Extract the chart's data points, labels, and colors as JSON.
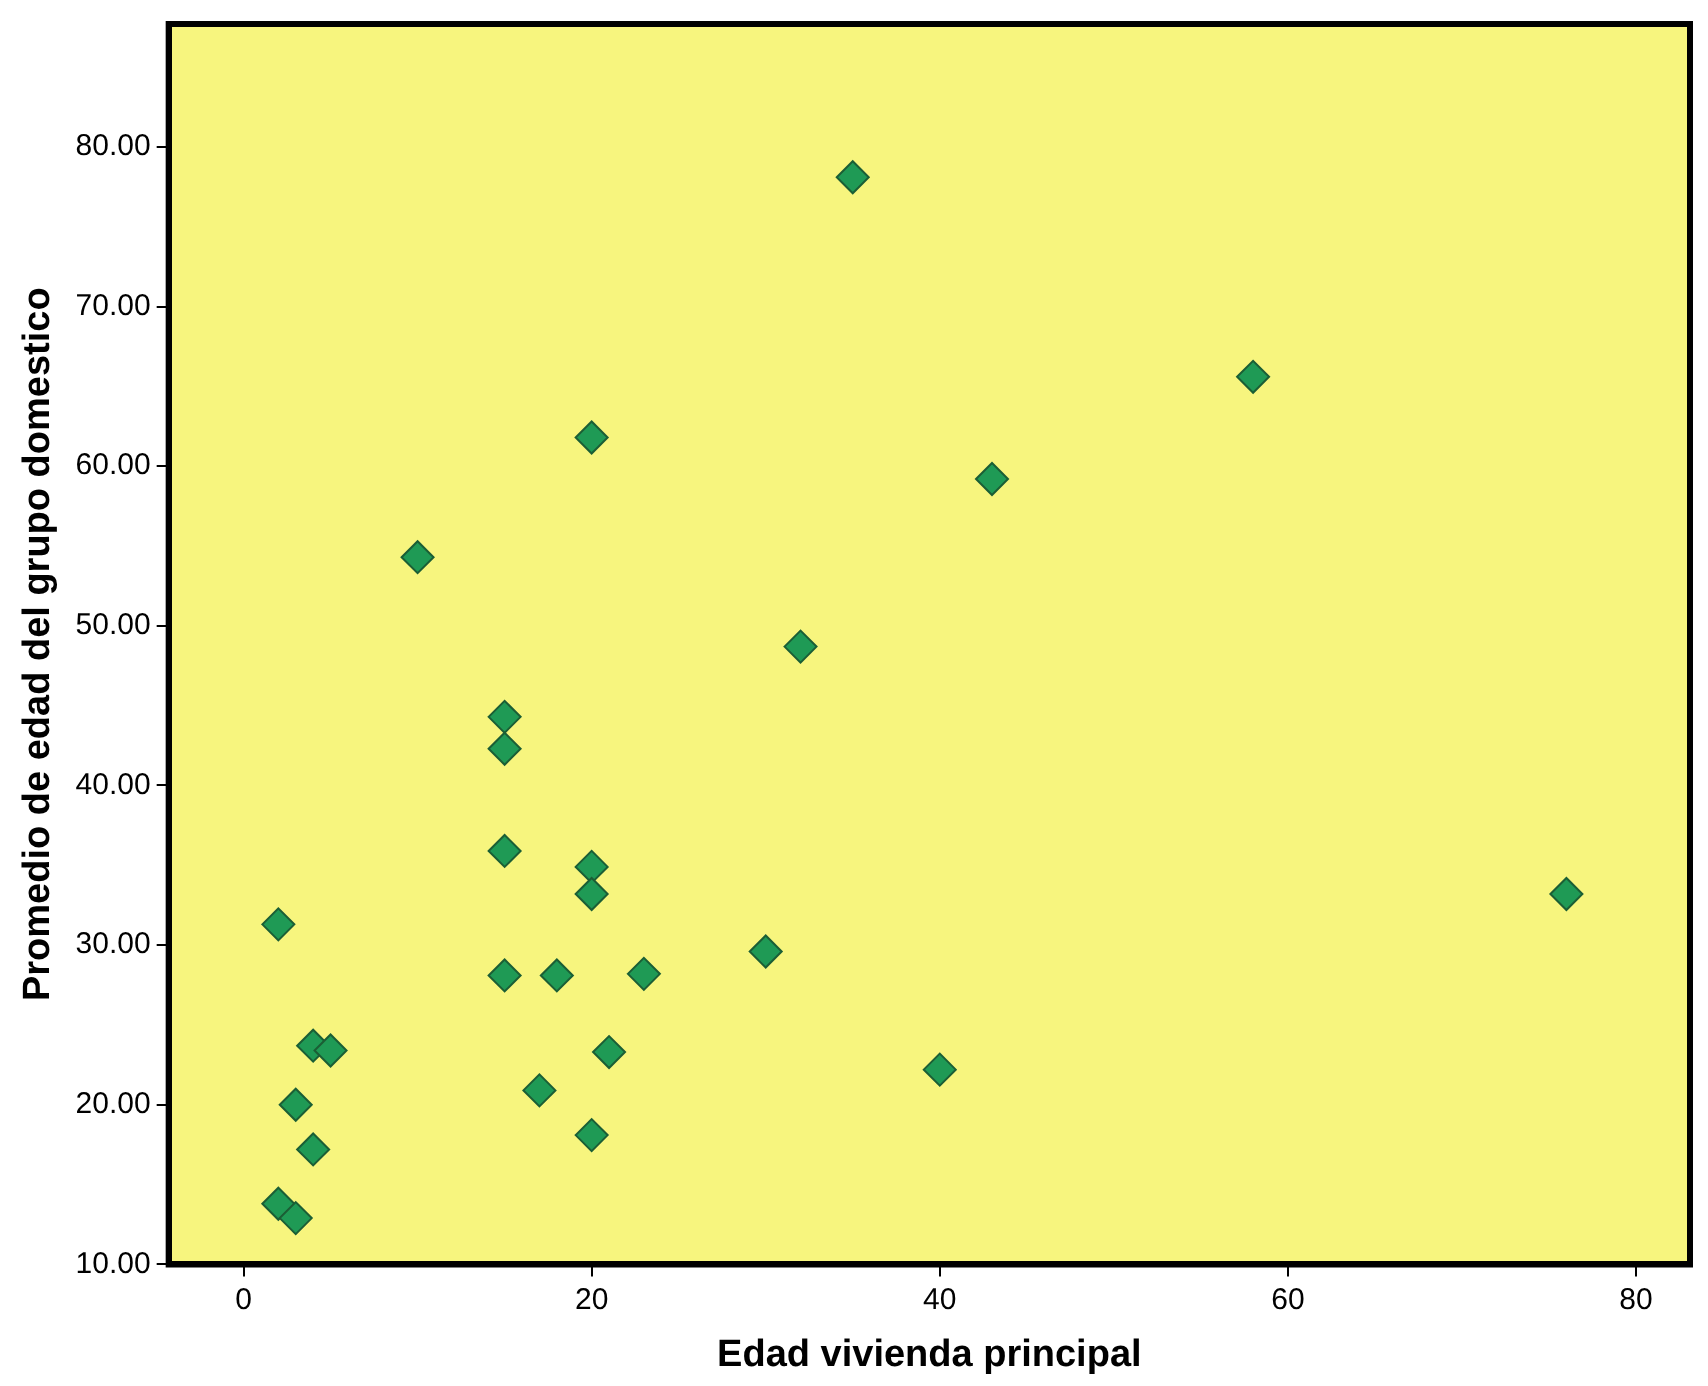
{
  "chart_data": {
    "type": "scatter",
    "xlabel": "Edad vivienda principal",
    "ylabel": "Promedio de edad del grupo domestico",
    "marker": "diamond",
    "grid": false,
    "legend": false,
    "xlim": [
      -4.3,
      83.1
    ],
    "ylim": [
      10,
      87.7
    ],
    "xticks": [
      0,
      20,
      40,
      60,
      80
    ],
    "yticks": [
      {
        "value": 10,
        "label": "10.00"
      },
      {
        "value": 20,
        "label": "20.00"
      },
      {
        "value": 30,
        "label": "30.00"
      },
      {
        "value": 40,
        "label": "40.00"
      },
      {
        "value": 50,
        "label": "50.00"
      },
      {
        "value": 60,
        "label": "60.00"
      },
      {
        "value": 70,
        "label": "70.00"
      },
      {
        "value": 80,
        "label": "80.00"
      }
    ],
    "series": [
      {
        "color": "#1f9a55",
        "x": [
          35,
          58,
          20,
          43,
          10,
          32,
          15,
          15,
          15,
          20,
          20,
          76,
          2,
          30,
          15,
          18,
          23,
          4,
          5,
          21,
          40,
          17,
          3,
          4,
          20,
          2,
          3
        ],
        "values": [
          78.1,
          65.6,
          61.8,
          59.2,
          54.3,
          48.7,
          44.3,
          42.3,
          35.9,
          34.9,
          33.2,
          33.2,
          31.3,
          29.6,
          28.1,
          28.1,
          28.2,
          23.7,
          23.4,
          23.3,
          22.2,
          20.9,
          20.0,
          17.2,
          18.1,
          13.8,
          12.9
        ]
      }
    ]
  }
}
